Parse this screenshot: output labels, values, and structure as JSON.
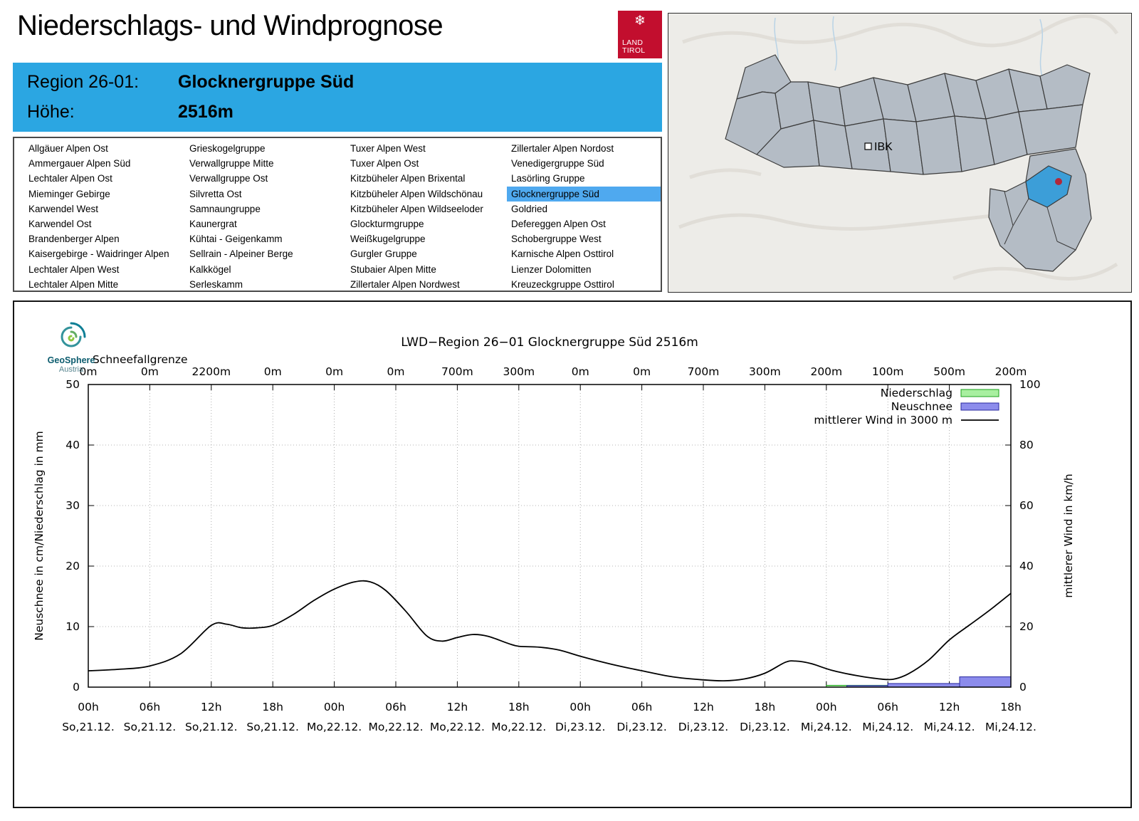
{
  "page_title": "Niederschlags- und Windprognose",
  "logo": {
    "line1": "LAND",
    "line2": "TIROL"
  },
  "region_header": {
    "region_label": "Region 26-01:",
    "region_value": "Glocknergruppe Süd",
    "hoehe_label": "Höhe:",
    "hoehe_value": "2516m"
  },
  "map": {
    "ibk_label": "IBK"
  },
  "geosphere": {
    "line1": "GeoSphere",
    "line2": "Austria"
  },
  "colors": {
    "accent_blue": "#2BA6E2",
    "highlight_blue": "#4FA9EF",
    "tirol_red": "#C20E2E",
    "selected_region_blue": "#3C9ED8",
    "location_dot_red": "#B2283A"
  },
  "region_list": {
    "selected": "Glocknergruppe Süd",
    "columns": [
      [
        "Allgäuer Alpen Ost",
        "Ammergauer Alpen Süd",
        "Lechtaler Alpen Ost",
        "Mieminger Gebirge",
        "Karwendel West",
        "Karwendel Ost",
        "Brandenberger Alpen",
        "Kaisergebirge - Waidringer Alpen",
        "Lechtaler Alpen West",
        "Lechtaler Alpen Mitte"
      ],
      [
        "Grieskogelgruppe",
        "Verwallgruppe Mitte",
        "Verwallgruppe Ost",
        "Silvretta Ost",
        "Samnaungruppe",
        "Kaunergrat",
        "Kühtai - Geigenkamm",
        "Sellrain - Alpeiner Berge",
        "Kalkkögel",
        "Serleskamm"
      ],
      [
        "Tuxer Alpen West",
        "Tuxer Alpen Ost",
        "Kitzbüheler Alpen Brixental",
        "Kitzbüheler Alpen Wildschönau",
        "Kitzbüheler Alpen Wildseeloder",
        "Glockturmgruppe",
        "Weißkugelgruppe",
        "Gurgler Gruppe",
        "Stubaier Alpen Mitte",
        "Zillertaler Alpen Nordwest"
      ],
      [
        "Zillertaler Alpen Nordost",
        "Venedigergruppe Süd",
        "Lasörling Gruppe",
        "Glocknergruppe Süd",
        "Goldried",
        "Defereggen Alpen Ost",
        "Schobergruppe West",
        "Karnische Alpen Osttirol",
        "Lienzer Dolomitten",
        "Kreuzeckgruppe Osttirol"
      ]
    ]
  },
  "chart_data": {
    "type": "combo",
    "title": "LWD−Region 26−01 Glocknergruppe Süd 2516m",
    "snowline": {
      "label": "Schneefallgrenze",
      "values": [
        "0m",
        "0m",
        "2200m",
        "0m",
        "0m",
        "0m",
        "700m",
        "300m",
        "0m",
        "0m",
        "700m",
        "300m",
        "200m",
        "100m",
        "500m",
        "200m"
      ]
    },
    "xticks": [
      {
        "hour": "00h",
        "date": "So,21.12."
      },
      {
        "hour": "06h",
        "date": "So,21.12."
      },
      {
        "hour": "12h",
        "date": "So,21.12."
      },
      {
        "hour": "18h",
        "date": "So,21.12."
      },
      {
        "hour": "00h",
        "date": "Mo,22.12."
      },
      {
        "hour": "06h",
        "date": "Mo,22.12."
      },
      {
        "hour": "12h",
        "date": "Mo,22.12."
      },
      {
        "hour": "18h",
        "date": "Mo,22.12."
      },
      {
        "hour": "00h",
        "date": "Di,23.12."
      },
      {
        "hour": "06h",
        "date": "Di,23.12."
      },
      {
        "hour": "12h",
        "date": "Di,23.12."
      },
      {
        "hour": "18h",
        "date": "Di,23.12."
      },
      {
        "hour": "00h",
        "date": "Mi,24.12."
      },
      {
        "hour": "06h",
        "date": "Mi,24.12."
      },
      {
        "hour": "12h",
        "date": "Mi,24.12."
      },
      {
        "hour": "18h",
        "date": "Mi,24.12."
      }
    ],
    "x_hours_range": [
      0,
      90
    ],
    "axes": {
      "left": {
        "label": "Neuschnee in cm/Niederschlag in mm",
        "min": 0,
        "max": 50,
        "ticks": [
          0,
          10,
          20,
          30,
          40,
          50
        ]
      },
      "right": {
        "label": "mittlerer Wind in km/h",
        "min": 0,
        "max": 100,
        "ticks": [
          0,
          20,
          40,
          60,
          80,
          100
        ]
      }
    },
    "grid": true,
    "legend_position": "top-right",
    "series": [
      {
        "name": "Niederschlag",
        "type": "bar",
        "unit": "mm",
        "axis": "left",
        "fill": "#A8EFA0",
        "stroke": "#1CA01C",
        "bars": [
          [
            72,
            78,
            0.3
          ]
        ]
      },
      {
        "name": "Neuschnee",
        "type": "bar",
        "unit": "cm",
        "axis": "left",
        "fill": "#8C8CEC",
        "stroke": "#2828A0",
        "bars": [
          [
            74,
            78,
            0.25
          ],
          [
            78,
            85,
            0.6
          ],
          [
            85,
            90,
            1.7
          ]
        ]
      },
      {
        "name": "mittlerer Wind in 3000 m",
        "type": "line",
        "unit": "km/h",
        "axis": "right",
        "color": "#000000",
        "points": [
          [
            0,
            5.4
          ],
          [
            3,
            5.9
          ],
          [
            6,
            7.0
          ],
          [
            9,
            11.0
          ],
          [
            12,
            20.4
          ],
          [
            13.5,
            20.8
          ],
          [
            15,
            19.6
          ],
          [
            16.5,
            19.6
          ],
          [
            18,
            20.4
          ],
          [
            20,
            24.0
          ],
          [
            22,
            28.6
          ],
          [
            24,
            32.4
          ],
          [
            26,
            34.8
          ],
          [
            27.5,
            34.8
          ],
          [
            29,
            32.0
          ],
          [
            31,
            25.0
          ],
          [
            33,
            17.0
          ],
          [
            34.5,
            15.2
          ],
          [
            36,
            16.4
          ],
          [
            37.5,
            17.4
          ],
          [
            39,
            16.8
          ],
          [
            41,
            14.4
          ],
          [
            42,
            13.5
          ],
          [
            44,
            13.2
          ],
          [
            46,
            12.2
          ],
          [
            48,
            10.2
          ],
          [
            51,
            7.6
          ],
          [
            54,
            5.4
          ],
          [
            57,
            3.4
          ],
          [
            60,
            2.4
          ],
          [
            62,
            2.1
          ],
          [
            64,
            2.7
          ],
          [
            66,
            4.6
          ],
          [
            68,
            8.2
          ],
          [
            69,
            8.6
          ],
          [
            70.5,
            7.8
          ],
          [
            72.5,
            5.6
          ],
          [
            75,
            3.8
          ],
          [
            77,
            2.8
          ],
          [
            78.5,
            2.6
          ],
          [
            80,
            4.4
          ],
          [
            82,
            9.0
          ],
          [
            84,
            15.6
          ],
          [
            86,
            20.6
          ],
          [
            88,
            25.6
          ],
          [
            90,
            31.0
          ]
        ]
      }
    ]
  }
}
